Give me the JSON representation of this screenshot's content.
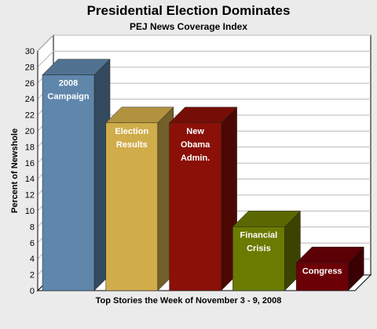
{
  "chart_data": {
    "type": "bar",
    "title": "Presidential Election Dominates",
    "subtitle": "PEJ News Coverage Index",
    "ylabel": "Percent of Newshole",
    "xlabel": "Top Stories the Week of November 3 - 9, 2008",
    "ylim": [
      0,
      30
    ],
    "ytick_step": 2,
    "grid": true,
    "bars": [
      {
        "label": [
          "2008",
          "Campaign"
        ],
        "value": 27,
        "color": "#5f86ab"
      },
      {
        "label": [
          "Election",
          "Results"
        ],
        "value": 21,
        "color": "#d0ac4a"
      },
      {
        "label": [
          "New",
          "Obama",
          "Admin."
        ],
        "value": 21,
        "color": "#8a1008"
      },
      {
        "label": [
          "Financial",
          "Crisis"
        ],
        "value": 8,
        "color": "#6b7a00"
      },
      {
        "label": [
          "Congress"
        ],
        "value": 3.5,
        "color": "#6b0006"
      }
    ]
  }
}
